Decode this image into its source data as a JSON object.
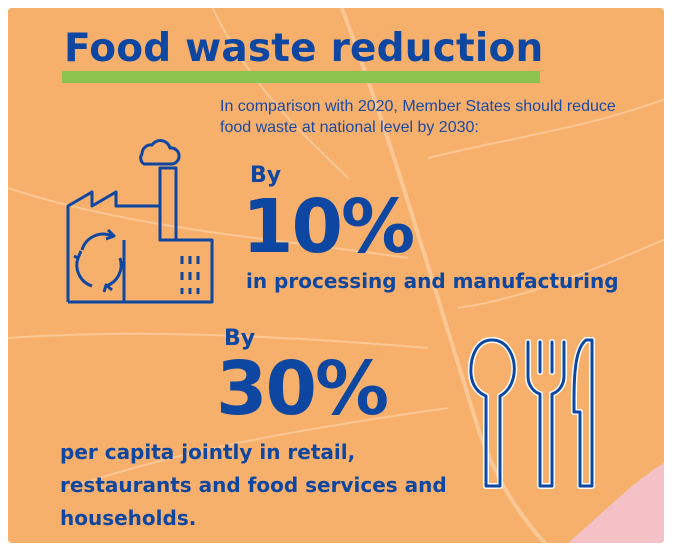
{
  "title": "Food waste reduction",
  "intro": "In comparison with 2020, Member States should reduce food waste at national level by 2030:",
  "targets": [
    {
      "by": "By",
      "percent": "10%",
      "description": "in processing and manufacturing"
    },
    {
      "by": "By",
      "percent": "30%",
      "description": "per capita jointly in retail, restaurants and food services and households."
    }
  ],
  "colors": {
    "background": "#f7b06b",
    "text": "#0e47a1",
    "accent_bar": "#8cc34f"
  },
  "icons": [
    "factory-icon",
    "cutlery-icon"
  ]
}
